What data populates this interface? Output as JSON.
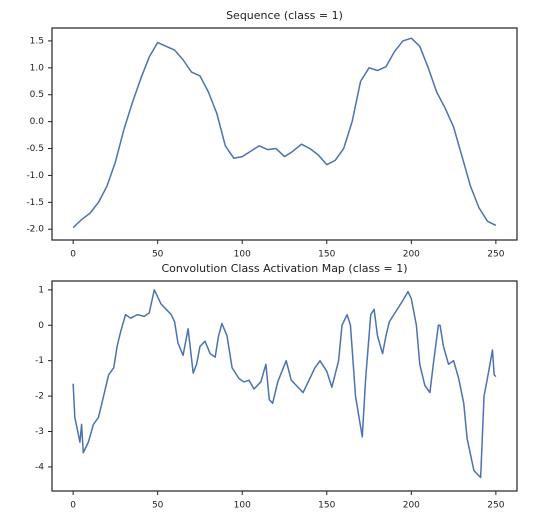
{
  "chart_data": [
    {
      "type": "line",
      "title": "Sequence (class = 1)",
      "x": [
        0,
        5,
        10,
        15,
        20,
        25,
        30,
        35,
        40,
        45,
        50,
        55,
        60,
        65,
        70,
        75,
        80,
        85,
        90,
        95,
        100,
        105,
        110,
        115,
        120,
        125,
        130,
        135,
        140,
        145,
        150,
        155,
        160,
        165,
        170,
        175,
        180,
        185,
        190,
        195,
        200,
        205,
        210,
        215,
        220,
        225,
        230,
        235,
        240,
        245,
        250
      ],
      "series": [
        {
          "color": "#4c72b0",
          "values": [
            -1.97,
            -1.82,
            -1.7,
            -1.5,
            -1.2,
            -0.75,
            -0.15,
            0.35,
            0.8,
            1.2,
            1.47,
            1.4,
            1.33,
            1.15,
            0.92,
            0.85,
            0.55,
            0.15,
            -0.45,
            -0.68,
            -0.65,
            -0.55,
            -0.45,
            -0.52,
            -0.5,
            -0.65,
            -0.55,
            -0.42,
            -0.5,
            -0.62,
            -0.8,
            -0.72,
            -0.5,
            0.0,
            0.75,
            1.0,
            0.95,
            1.02,
            1.3,
            1.5,
            1.55,
            1.4,
            1.0,
            0.55,
            0.25,
            -0.1,
            -0.65,
            -1.2,
            -1.6,
            -1.85,
            -1.93
          ]
        }
      ],
      "xlim": [
        -12.5,
        262.5
      ],
      "xticks": [
        0,
        50,
        100,
        150,
        200,
        250
      ],
      "ylim": [
        -2.2,
        1.74
      ],
      "yticks": [
        {
          "value": -2.0,
          "label": "-2.0"
        },
        -1.5,
        {
          "value": -1.0,
          "label": "-1.0"
        },
        -0.5,
        {
          "value": 0.0,
          "label": "0.0"
        },
        0.5,
        {
          "value": 1.0,
          "label": "1.0"
        },
        1.5
      ]
    },
    {
      "type": "line",
      "title": "Convolution Class Activation Map (class = 1)",
      "x": [
        0,
        1,
        4,
        5,
        6,
        9,
        12,
        15,
        18,
        21,
        24,
        26,
        28,
        31,
        34,
        38,
        42,
        45,
        48,
        50,
        52,
        55,
        58,
        60,
        62,
        65,
        68,
        71,
        73,
        75,
        78,
        81,
        84,
        86,
        88,
        91,
        94,
        98,
        101,
        104,
        107,
        111,
        114,
        116,
        118,
        121,
        126,
        129,
        132,
        136,
        139,
        143,
        146,
        150,
        153,
        157,
        159,
        162,
        164,
        167,
        171,
        173,
        176,
        178,
        180,
        183,
        185,
        187,
        191,
        195,
        198,
        200,
        203,
        205,
        208,
        211,
        213,
        216,
        217,
        219,
        222,
        225,
        228,
        231,
        233,
        237,
        241,
        243,
        245,
        248,
        249,
        250
      ],
      "series": [
        {
          "color": "#4c72b0",
          "values": [
            -1.65,
            -2.6,
            -3.3,
            -2.8,
            -3.6,
            -3.3,
            -2.8,
            -2.6,
            -2.0,
            -1.4,
            -1.2,
            -0.6,
            -0.2,
            0.3,
            0.2,
            0.3,
            0.25,
            0.35,
            1.0,
            0.8,
            0.6,
            0.45,
            0.3,
            0.1,
            -0.5,
            -0.85,
            -0.1,
            -1.35,
            -1.1,
            -0.6,
            -0.45,
            -0.8,
            -0.9,
            -0.3,
            0.05,
            -0.3,
            -1.2,
            -1.5,
            -1.6,
            -1.55,
            -1.8,
            -1.6,
            -1.1,
            -2.1,
            -2.2,
            -1.6,
            -1.0,
            -1.55,
            -1.7,
            -1.9,
            -1.6,
            -1.2,
            -1.0,
            -1.3,
            -1.75,
            -1.0,
            0.0,
            0.3,
            0.0,
            -2.0,
            -3.15,
            -1.5,
            0.3,
            0.45,
            -0.3,
            -0.8,
            -0.3,
            0.1,
            0.4,
            0.7,
            0.95,
            0.75,
            0.0,
            -1.1,
            -1.7,
            -1.9,
            -1.1,
            0.0,
            0.0,
            -0.6,
            -1.1,
            -1.0,
            -1.5,
            -2.2,
            -3.2,
            -4.1,
            -4.3,
            -2.0,
            -1.5,
            -0.7,
            -1.4,
            -1.45
          ]
        }
      ],
      "xlim": [
        -12.5,
        262.5
      ],
      "xticks": [
        0,
        50,
        100,
        150,
        200,
        250
      ],
      "ylim": [
        -4.68,
        1.25
      ],
      "yticks": [
        -4,
        -3,
        -2,
        -1,
        0,
        1
      ]
    }
  ]
}
